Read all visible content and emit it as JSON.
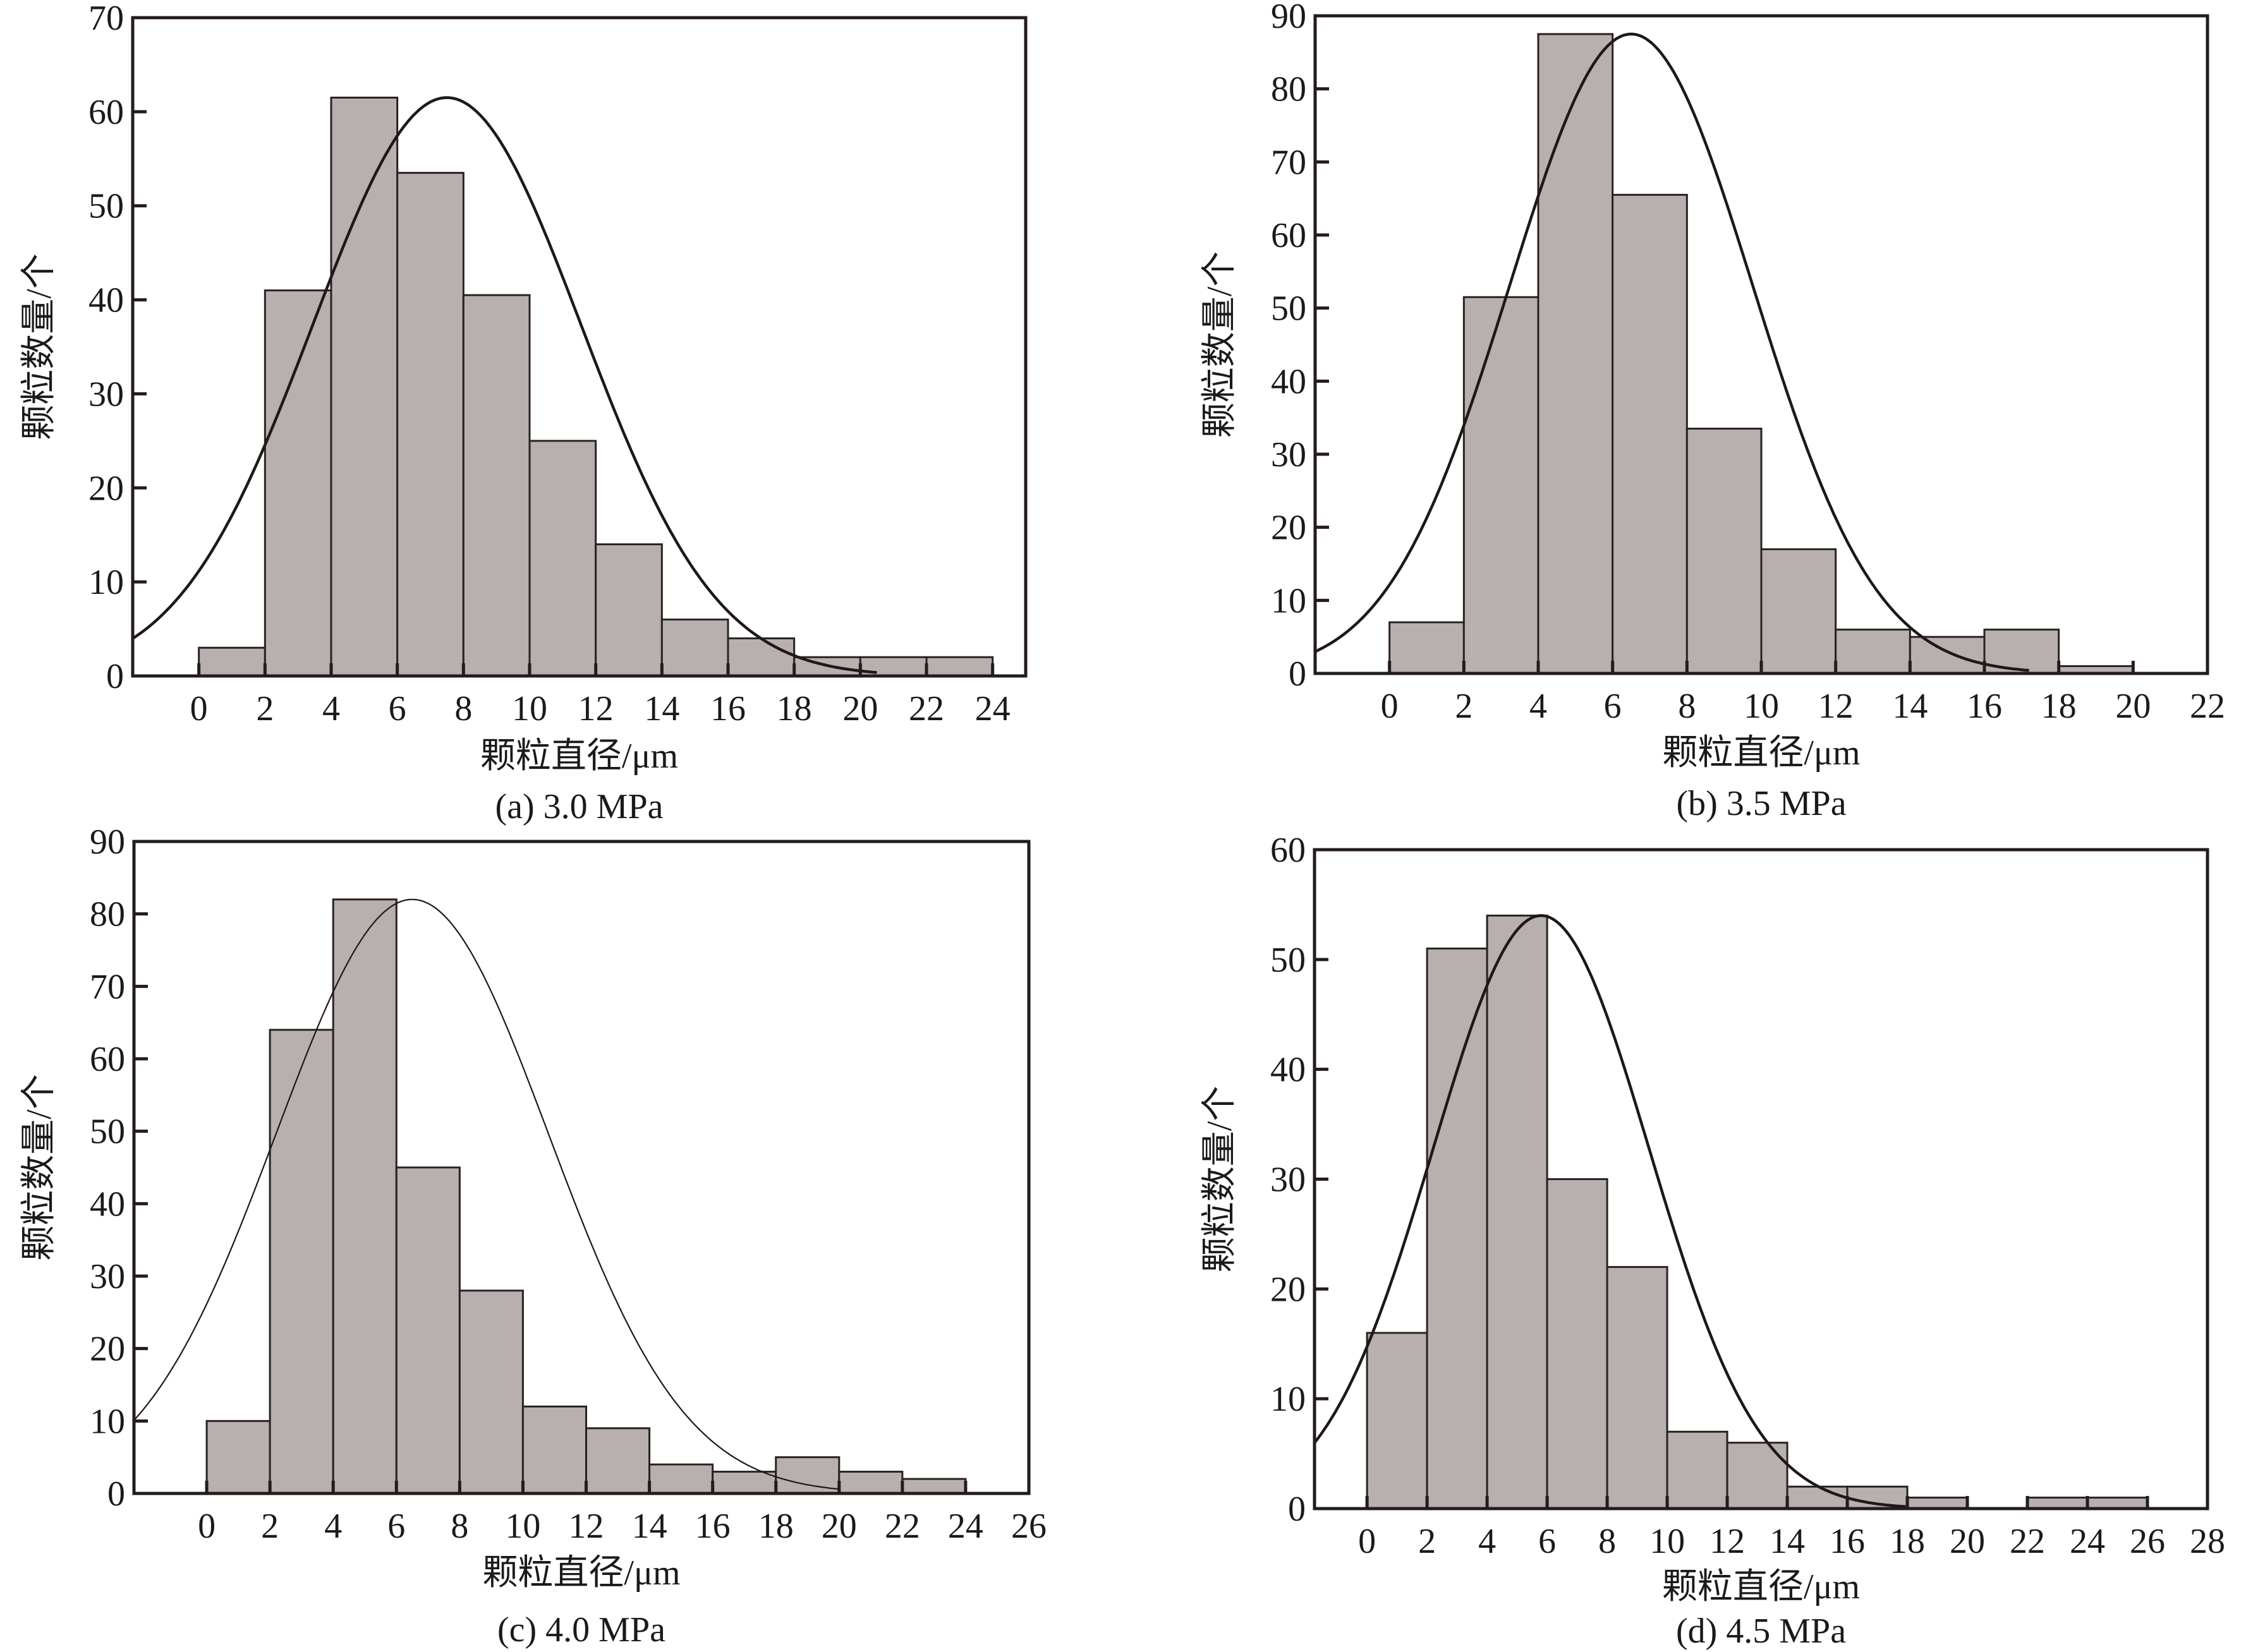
{
  "figure": {
    "panels_count": 4
  },
  "chart_data": [
    {
      "type": "bar",
      "subtype": "histogram-with-normal-fit",
      "caption": "(a) 3.0 MPa",
      "xlabel": "颗粒直径/μm",
      "ylabel": "颗粒数量/个",
      "xlim": [
        -2,
        25
      ],
      "ylim": [
        0,
        70
      ],
      "xticks": [
        0,
        2,
        4,
        6,
        8,
        10,
        12,
        14,
        16,
        18,
        20,
        22,
        24
      ],
      "yticks": [
        0,
        10,
        20,
        30,
        40,
        50,
        60,
        70
      ],
      "bin_width": 2,
      "bin_starts": [
        0,
        2,
        4,
        6,
        8,
        10,
        12,
        14,
        16,
        18,
        20,
        22
      ],
      "values": [
        3,
        41,
        61.5,
        53.5,
        40.5,
        25,
        14,
        6,
        4,
        2,
        2,
        2
      ],
      "fit_curve": {
        "type": "normal",
        "peak": 61.5,
        "mean": 7.5,
        "sd": 4.06,
        "x_end": 20.5
      },
      "grid": false,
      "legend": "none"
    },
    {
      "type": "bar",
      "subtype": "histogram-with-normal-fit",
      "caption": "(b) 3.5 MPa",
      "xlabel": "颗粒直径/μm",
      "ylabel": "颗粒数量/个",
      "xlim": [
        -2,
        22
      ],
      "ylim": [
        0,
        90
      ],
      "xticks": [
        0,
        2,
        4,
        6,
        8,
        10,
        12,
        14,
        16,
        18,
        20,
        22
      ],
      "yticks": [
        0,
        10,
        20,
        30,
        40,
        50,
        60,
        70,
        80,
        90
      ],
      "bin_width": 2,
      "bin_starts": [
        0,
        2,
        4,
        6,
        8,
        10,
        12,
        14,
        16,
        18
      ],
      "values": [
        7,
        51.5,
        87.5,
        65.5,
        33.5,
        17,
        6,
        5,
        6,
        1
      ],
      "fit_curve": {
        "type": "normal",
        "peak": 87.5,
        "mean": 6.5,
        "sd": 3.27,
        "x_end": 17.2
      },
      "grid": false,
      "legend": "none"
    },
    {
      "type": "bar",
      "subtype": "histogram-with-normal-fit",
      "caption": "(c) 4.0 MPa",
      "xlabel": "颗粒直径/μm",
      "ylabel": "颗粒数量/个",
      "xlim": [
        -2.3,
        26
      ],
      "ylim": [
        0,
        90
      ],
      "xticks": [
        0,
        2,
        4,
        6,
        8,
        10,
        12,
        14,
        16,
        18,
        20,
        22,
        24,
        26
      ],
      "yticks": [
        0,
        10,
        20,
        30,
        40,
        50,
        60,
        70,
        80,
        90
      ],
      "bin_width": 2,
      "bin_starts": [
        0,
        2,
        4,
        6,
        8,
        10,
        12,
        14,
        16,
        18,
        20,
        22
      ],
      "values": [
        10,
        64,
        82,
        45,
        28,
        12,
        9,
        4,
        3,
        5,
        3,
        2
      ],
      "fit_curve": {
        "type": "normal",
        "peak": 82,
        "mean": 6.5,
        "sd": 4.3,
        "x_end": 20
      },
      "grid": false,
      "legend": "none"
    },
    {
      "type": "bar",
      "subtype": "histogram-with-normal-fit",
      "caption": "(d) 4.5 MPa",
      "xlabel": "颗粒直径/μm",
      "ylabel": "颗粒数量/个",
      "xlim": [
        -1.75,
        28
      ],
      "ylim": [
        0,
        60
      ],
      "xticks": [
        0,
        2,
        4,
        6,
        8,
        10,
        12,
        14,
        16,
        18,
        20,
        22,
        24,
        26,
        28
      ],
      "yticks": [
        0,
        10,
        20,
        30,
        40,
        50,
        60
      ],
      "bin_width": 2,
      "bin_starts": [
        0,
        2,
        4,
        6,
        8,
        10,
        12,
        14,
        16,
        18,
        20,
        22,
        24
      ],
      "values": [
        16,
        51,
        54,
        30,
        22,
        7,
        6,
        2,
        2,
        1,
        0,
        1,
        1
      ],
      "fit_curve": {
        "type": "normal",
        "peak": 54,
        "mean": 5.8,
        "sd": 3.6,
        "x_end": 18
      },
      "grid": false,
      "legend": "none"
    }
  ]
}
